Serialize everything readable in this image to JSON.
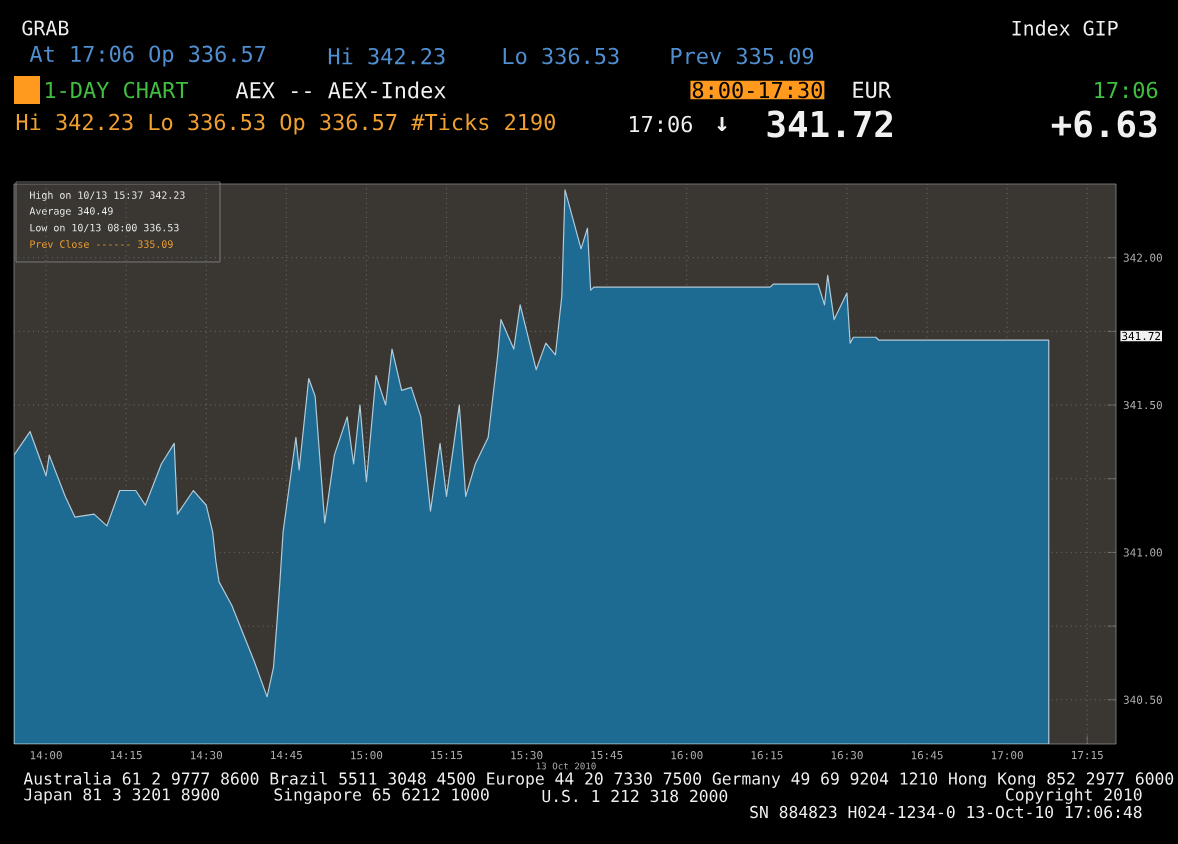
{
  "chart_data": {
    "type": "area",
    "title": "1-DAY CHART",
    "subtitle": "AEX -- AEX-Index",
    "x": [
      13.9,
      13.95,
      14.0,
      14.01,
      14.06,
      14.09,
      14.15,
      14.19,
      14.23,
      14.28,
      14.31,
      14.36,
      14.4,
      14.41,
      14.46,
      14.5,
      14.52,
      14.53,
      14.54,
      14.58,
      14.65,
      14.69,
      14.71,
      14.72,
      14.73,
      14.74,
      14.78,
      14.79,
      14.82,
      14.84,
      14.87,
      14.9,
      14.94,
      14.96,
      14.98,
      15.0,
      15.03,
      15.06,
      15.08,
      15.11,
      15.14,
      15.17,
      15.2,
      15.23,
      15.25,
      15.29,
      15.31,
      15.34,
      15.38,
      15.41,
      15.42,
      15.46,
      15.48,
      15.53,
      15.56,
      15.59,
      15.61,
      15.62,
      15.67,
      15.69,
      15.7,
      15.71,
      16.26,
      16.27,
      16.41,
      16.43,
      16.44,
      16.46,
      16.5,
      16.51,
      16.52,
      16.59,
      16.6,
      17.13
    ],
    "series": [
      {
        "color": "#1d6a92",
        "values": [
          341.33,
          341.41,
          341.26,
          341.33,
          341.19,
          341.12,
          341.13,
          341.09,
          341.21,
          341.21,
          341.16,
          341.3,
          341.37,
          341.13,
          341.21,
          341.16,
          341.07,
          340.97,
          340.9,
          340.82,
          340.63,
          340.51,
          340.61,
          340.75,
          340.9,
          341.07,
          341.39,
          341.28,
          341.59,
          341.53,
          341.1,
          341.33,
          341.46,
          341.3,
          341.5,
          341.24,
          341.6,
          341.5,
          341.69,
          341.55,
          341.56,
          341.46,
          341.14,
          341.37,
          341.19,
          341.5,
          341.19,
          341.3,
          341.39,
          341.67,
          341.79,
          341.69,
          341.84,
          341.62,
          341.71,
          341.67,
          341.87,
          342.23,
          342.03,
          342.1,
          341.89,
          341.9,
          341.9,
          341.91,
          341.91,
          341.84,
          341.94,
          341.79,
          341.88,
          341.71,
          341.73,
          341.73,
          341.72,
          341.72
        ]
      }
    ],
    "xlim": [
      13.9,
      17.34
    ],
    "ylim": [
      340.35,
      342.25
    ],
    "xticks": [
      {
        "value": 14,
        "label": "14:00"
      },
      {
        "value": 14.25,
        "label": "14:15"
      },
      {
        "value": 14.5,
        "label": "14:30"
      },
      {
        "value": 14.75,
        "label": "14:45"
      },
      {
        "value": 15,
        "label": "15:00"
      },
      {
        "value": 15.25,
        "label": "15:15"
      },
      {
        "value": 15.5,
        "label": "15:30"
      },
      {
        "value": 15.75,
        "label": "15:45"
      },
      {
        "value": 16,
        "label": "16:00"
      },
      {
        "value": 16.25,
        "label": "16:15"
      },
      {
        "value": 16.5,
        "label": "16:30"
      },
      {
        "value": 16.75,
        "label": "16:45"
      },
      {
        "value": 17,
        "label": "17:00"
      },
      {
        "value": 17.25,
        "label": "17:15"
      }
    ],
    "yticks": [
      {
        "value": 340.5,
        "label": "340.50"
      },
      {
        "value": 340.75,
        "label": null
      },
      {
        "value": 341,
        "label": "341.00"
      },
      {
        "value": 341.25,
        "label": null
      },
      {
        "value": 341.5,
        "label": "341.50"
      },
      {
        "value": 341.75,
        "label": null
      },
      {
        "value": 342,
        "label": "342.00"
      }
    ],
    "grid": true,
    "annotations": [
      "GRAB",
      "Index GIP",
      "At 17:06 Op 336.57",
      "Hi 342.23",
      "Lo 336.53",
      "Prev 335.09",
      "8:00-17:30",
      "EUR",
      "17:06",
      "Hi 342.23 Lo 336.53 Op 336.57 #Ticks 2190",
      "17:06",
      "↓",
      "341.72",
      "+6.63",
      "High on 10/13 15:37 342.23",
      "Average 340.49",
      "Low on 10/13 08:00 336.53",
      "Prev Close ------ 335.09",
      "13 Oct 2010",
      "341.72",
      "Australia 61 2 9777 8600 Brazil 5511 3048 4500 Europe 44 20 7330 7500 Germany 49 69 9204 1210 Hong Kong 852 2977 6000",
      "Japan 81 3 3201 8900",
      "Singapore 65 6212 1000",
      "U.S. 1 212 318 2000",
      "Copyright 2010",
      "SN 884823 H024-1234-0 13-Oct-10 17:06:48"
    ]
  }
}
